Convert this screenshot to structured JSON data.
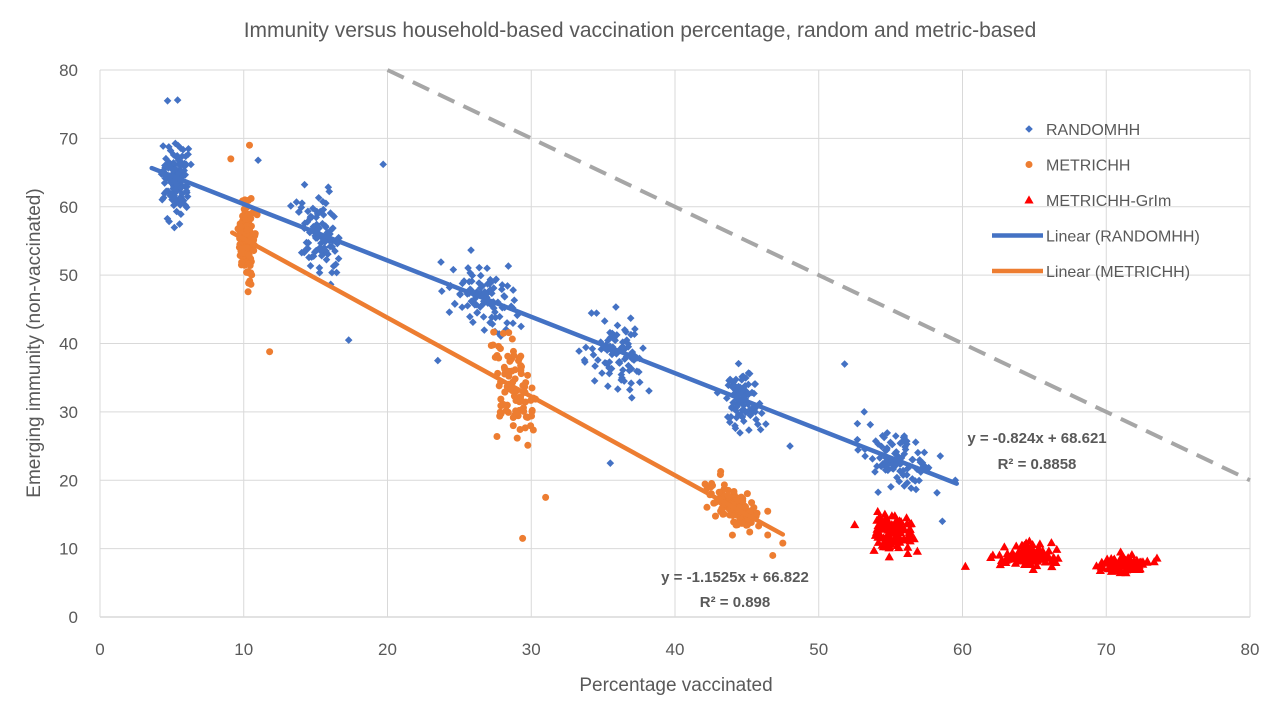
{
  "chart_data": {
    "type": "scatter",
    "title": "Immunity versus household-based vaccination percentage, random and metric-based",
    "xlabel": "Percentage vaccinated",
    "ylabel": "Emerging immunity (non-vaccinated)",
    "xlim": [
      0,
      80
    ],
    "ylim": [
      0,
      80
    ],
    "xticks": [
      "0",
      "10",
      "20",
      "30",
      "40",
      "50",
      "60",
      "70",
      "80"
    ],
    "yticks": [
      "0",
      "10",
      "20",
      "30",
      "40",
      "50",
      "60",
      "70",
      "80"
    ],
    "grid": true,
    "legend_position": "right",
    "series": [
      {
        "name": "RANDOMHH",
        "marker": "diamond",
        "color": "#4472C4",
        "clusters": [
          {
            "x": [
              3.6,
              6.8
            ],
            "y": [
              49,
              76
            ],
            "n": 120
          },
          {
            "x": [
              12.5,
              18.0
            ],
            "y": [
              39,
              68
            ],
            "n": 90
          },
          {
            "x": [
              22.5,
              31.0
            ],
            "y": [
              34,
              58
            ],
            "n": 95
          },
          {
            "x": [
              32.5,
              39.5
            ],
            "y": [
              22,
              49
            ],
            "n": 90
          },
          {
            "x": [
              42.0,
              47.5
            ],
            "y": [
              18,
              40
            ],
            "n": 85
          },
          {
            "x": [
              51.0,
              59.5
            ],
            "y": [
              14,
              37
            ],
            "n": 95
          }
        ],
        "extra_points": [
          {
            "x": 19.7,
            "y": 66.2
          },
          {
            "x": 11.0,
            "y": 66.8
          },
          {
            "x": 4.7,
            "y": 75.5
          },
          {
            "x": 5.4,
            "y": 75.6
          },
          {
            "x": 17.3,
            "y": 40.5
          },
          {
            "x": 23.5,
            "y": 37.5
          },
          {
            "x": 35.5,
            "y": 22.5
          },
          {
            "x": 48.0,
            "y": 25.0
          },
          {
            "x": 59.5,
            "y": 20.0
          },
          {
            "x": 58.6,
            "y": 14.0
          },
          {
            "x": 51.8,
            "y": 37.0
          }
        ]
      },
      {
        "name": "METRICHH",
        "marker": "circle",
        "color": "#ED7D31",
        "clusters": [
          {
            "x": [
              9.2,
              11.3
            ],
            "y": [
              38,
              69
            ],
            "n": 100
          },
          {
            "x": [
              26.0,
              31.5
            ],
            "y": [
              11,
              45
            ],
            "n": 95
          },
          {
            "x": [
              41.0,
              47.5
            ],
            "y": [
              9,
              25
            ],
            "n": 110
          }
        ],
        "extra_points": [
          {
            "x": 10.4,
            "y": 69.0
          },
          {
            "x": 9.1,
            "y": 67.0
          },
          {
            "x": 11.8,
            "y": 38.8
          },
          {
            "x": 29.4,
            "y": 11.5
          },
          {
            "x": 31.0,
            "y": 17.5
          },
          {
            "x": 46.8,
            "y": 9.0
          },
          {
            "x": 47.5,
            "y": 10.8
          }
        ]
      },
      {
        "name": "METRICHH-GrIm",
        "marker": "triangle",
        "color": "#FF0000",
        "clusters": [
          {
            "x": [
              52.5,
              58.0
            ],
            "y": [
              7,
              18
            ],
            "n": 110
          },
          {
            "x": [
              61.0,
              68.0
            ],
            "y": [
              5.5,
              12.5
            ],
            "n": 110
          },
          {
            "x": [
              68.0,
              74.5
            ],
            "y": [
              5.5,
              9.8
            ],
            "n": 100
          }
        ],
        "extra_points": [
          {
            "x": 60.2,
            "y": 7.4
          },
          {
            "x": 52.5,
            "y": 13.5
          },
          {
            "x": 71.0,
            "y": 9.5
          }
        ]
      }
    ],
    "trendlines": [
      {
        "name": "Linear (RANDOMHH)",
        "color": "#4472C4",
        "slope": -0.824,
        "intercept": 68.621,
        "x_range": [
          3.6,
          59.6
        ],
        "equation": "y = -0.824x + 68.621",
        "r2": "R² = 0.8858"
      },
      {
        "name": "Linear (METRICHH)",
        "color": "#ED7D31",
        "slope": -1.1525,
        "intercept": 66.822,
        "x_range": [
          9.2,
          47.5
        ],
        "equation": "y = -1.1525x + 66.822",
        "r2": "R² = 0.898"
      }
    ],
    "reference_line": {
      "style": "dashed",
      "color": "#A6A6A6",
      "x": [
        20,
        80
      ],
      "y": [
        80,
        20
      ]
    }
  }
}
